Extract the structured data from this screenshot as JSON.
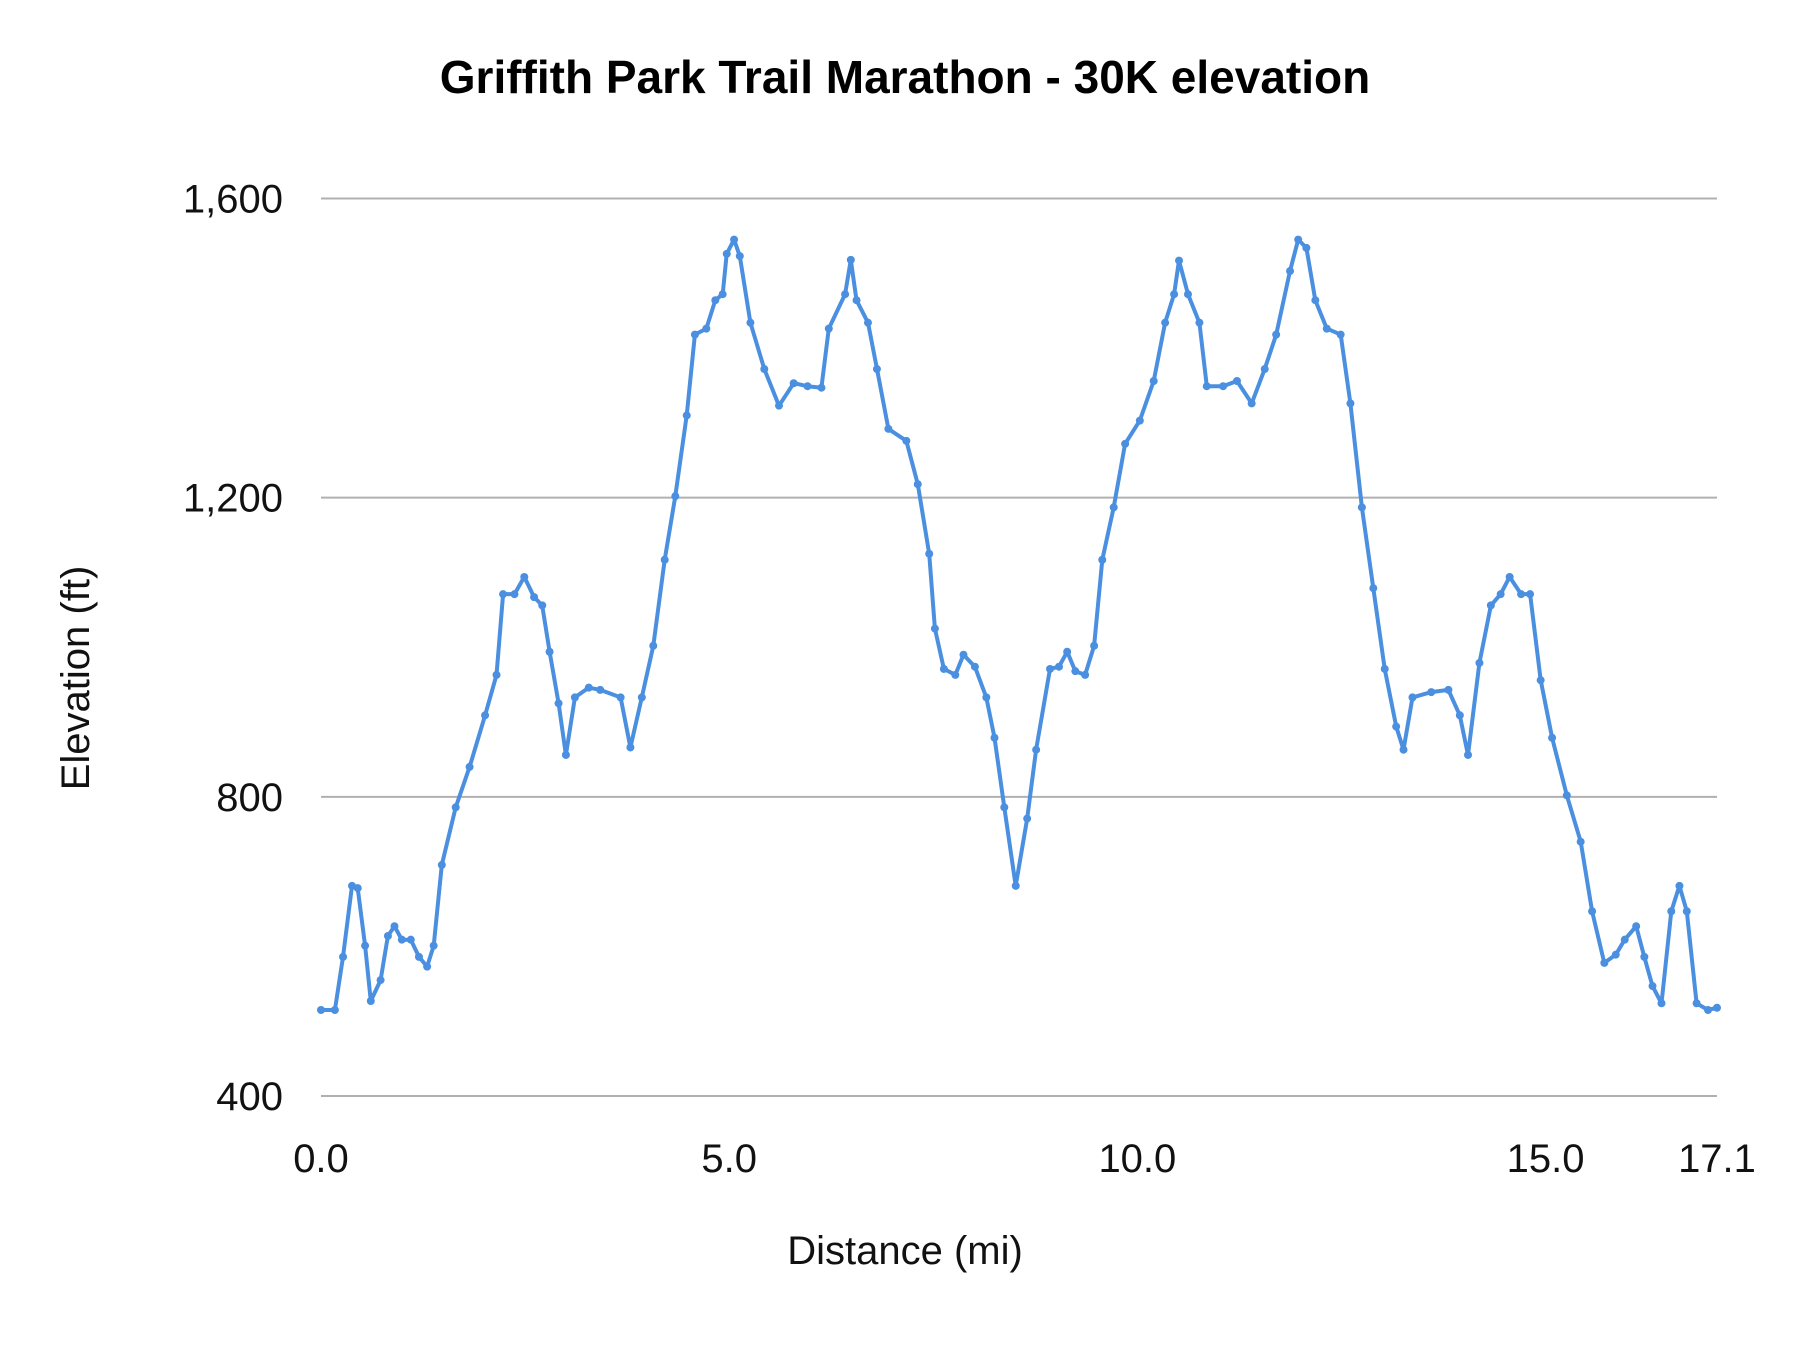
{
  "chart_data": {
    "type": "line",
    "title": "Griffith Park Trail Marathon - 30K elevation",
    "xlabel": "Distance (mi)",
    "ylabel": "Elevation (ft)",
    "xlim": [
      0,
      17.1
    ],
    "ylim": [
      400,
      1600
    ],
    "x_ticks": [
      0,
      5,
      10,
      15,
      17.1
    ],
    "x_tick_labels": [
      "0.0",
      "5.0",
      "10.0",
      "15.0",
      "17.1"
    ],
    "y_ticks": [
      400,
      800,
      1200,
      1600
    ],
    "y_tick_labels": [
      "400",
      "800",
      "1,200",
      "1,600"
    ],
    "grid": "horizontal",
    "line_color": "#4a8fe0",
    "grid_color": "#b0b0b0",
    "markers": true,
    "series": [
      {
        "x": [
          0,
          0.17,
          0.27,
          0.38,
          0.45,
          0.54,
          0.61,
          0.73,
          0.82,
          0.9,
          0.99,
          1.1,
          1.2,
          1.3,
          1.38,
          1.48,
          1.65,
          1.82,
          2.01,
          2.15,
          2.23,
          2.37,
          2.49,
          2.61,
          2.71,
          2.8,
          2.91,
          3.0,
          3.11,
          3.28,
          3.42,
          3.67,
          3.79,
          3.93,
          4.07,
          4.21,
          4.34,
          4.48,
          4.58,
          4.72,
          4.83,
          4.92,
          4.97,
          5.06,
          5.13,
          5.26,
          5.43,
          5.61,
          5.79,
          5.96,
          6.13,
          6.22,
          6.42,
          6.49,
          6.56,
          6.7,
          6.81,
          6.95,
          7.17,
          7.31,
          7.45,
          7.52,
          7.63,
          7.77,
          7.87,
          8.01,
          8.15,
          8.25,
          8.37,
          8.51,
          8.65,
          8.76,
          8.93,
          9.04,
          9.14,
          9.24,
          9.36,
          9.47,
          9.57,
          9.71,
          9.85,
          10.03,
          10.2,
          10.34,
          10.45,
          10.51,
          10.62,
          10.76,
          10.85,
          11.05,
          11.22,
          11.4,
          11.56,
          11.7,
          11.87,
          11.97,
          12.07,
          12.18,
          12.32,
          12.49,
          12.61,
          12.75,
          12.89,
          13.03,
          13.17,
          13.26,
          13.37,
          13.6,
          13.81,
          13.95,
          14.05,
          14.19,
          14.33,
          14.45,
          14.56,
          14.7,
          14.81,
          14.94,
          15.08,
          15.26,
          15.43,
          15.57,
          15.72,
          15.86,
          15.97,
          16.11,
          16.21,
          16.31,
          16.42,
          16.54,
          16.64,
          16.73,
          16.85,
          16.99,
          17.1
        ],
        "y": [
          515,
          515,
          586,
          681,
          678,
          601,
          527,
          555,
          614,
          627,
          609,
          609,
          586,
          573,
          601,
          709,
          786,
          840,
          909,
          963,
          1071,
          1071,
          1094,
          1067,
          1056,
          994,
          925,
          856,
          933,
          946,
          943,
          933,
          866,
          933,
          1002,
          1117,
          1202,
          1310,
          1418,
          1426,
          1464,
          1472,
          1526,
          1545,
          1523,
          1434,
          1372,
          1323,
          1353,
          1349,
          1347,
          1426,
          1472,
          1518,
          1464,
          1434,
          1372,
          1292,
          1276,
          1218,
          1125,
          1025,
          971,
          963,
          990,
          974,
          933,
          879,
          786,
          681,
          771,
          863,
          971,
          974,
          994,
          968,
          963,
          1002,
          1117,
          1187,
          1272,
          1303,
          1356,
          1434,
          1472,
          1517,
          1472,
          1434,
          1349,
          1349,
          1356,
          1326,
          1372,
          1418,
          1503,
          1545,
          1534,
          1464,
          1426,
          1418,
          1326,
          1187,
          1079,
          971,
          894,
          863,
          933,
          940,
          943,
          909,
          856,
          979,
          1056,
          1071,
          1094,
          1071,
          1071,
          956,
          879,
          802,
          740,
          647,
          578,
          589,
          609,
          627,
          586,
          547,
          524,
          647,
          681,
          647,
          524,
          515,
          518
        ]
      }
    ]
  }
}
